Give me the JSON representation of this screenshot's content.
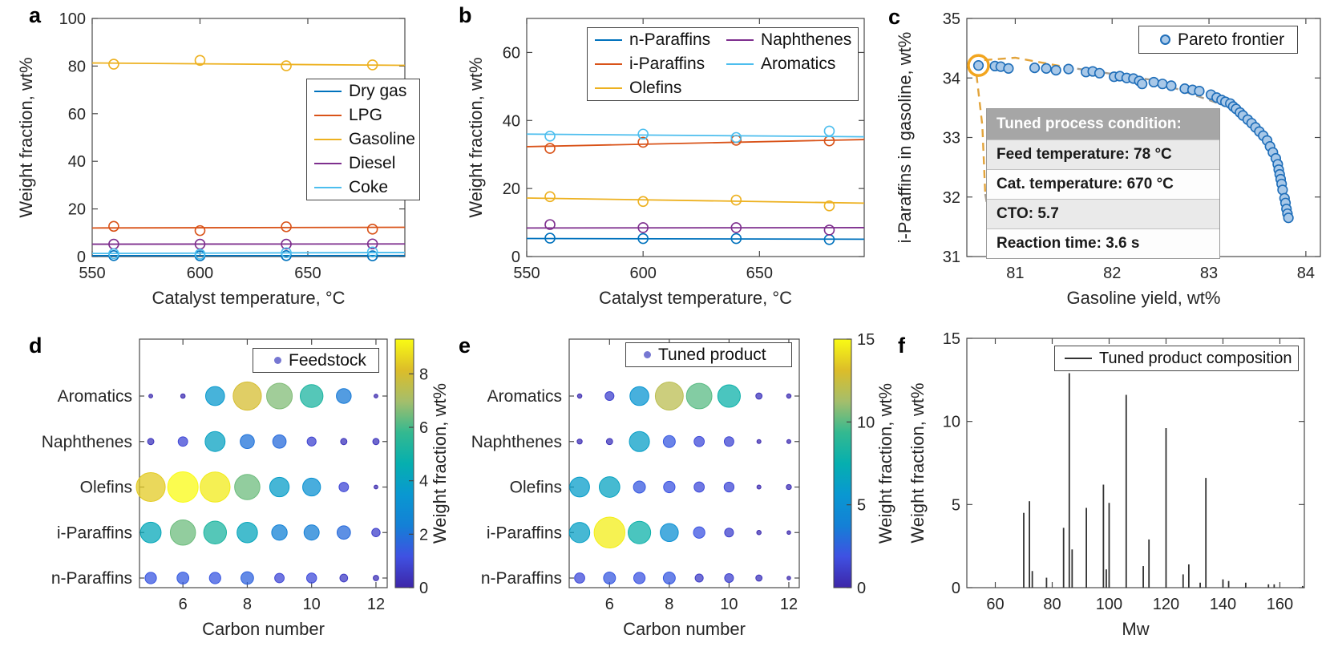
{
  "chart_data": [
    {
      "id": "a",
      "panel_label": "a",
      "type": "line",
      "xlabel": "Catalyst temperature, °C",
      "ylabel": "Weight fraction, wt%",
      "xlim": [
        550,
        695
      ],
      "ylim": [
        0,
        100
      ],
      "xticks": [
        550,
        600,
        650
      ],
      "yticks": [
        0,
        20,
        40,
        60,
        80,
        100
      ],
      "x": [
        560,
        600,
        640,
        680
      ],
      "series": [
        {
          "name": "Dry gas",
          "color": "#0072BD",
          "markers": [
            0.4,
            0.3,
            0.4,
            0.3
          ],
          "trend": [
            0.35,
            0.4
          ]
        },
        {
          "name": "LPG",
          "color": "#D95319",
          "markers": [
            12.7,
            10.9,
            12.5,
            11.5
          ],
          "trend": [
            12.0,
            12.3
          ]
        },
        {
          "name": "Gasoline",
          "color": "#EDB120",
          "markers": [
            80.8,
            82.4,
            80.1,
            80.5
          ],
          "trend": [
            81.3,
            80.3
          ]
        },
        {
          "name": "Diesel",
          "color": "#7E2F8E",
          "markers": [
            5.2,
            5.2,
            5.2,
            5.3
          ],
          "trend": [
            5.2,
            5.3
          ]
        },
        {
          "name": "Coke",
          "color": "#4DBEEE",
          "markers": [
            1.2,
            1.0,
            1.6,
            1.9
          ],
          "trend": [
            1.3,
            1.7
          ]
        }
      ]
    },
    {
      "id": "b",
      "panel_label": "b",
      "type": "line",
      "xlabel": "Catalyst temperature, °C",
      "ylabel": "Weight fraction, wt%",
      "xlim": [
        550,
        695
      ],
      "ylim": [
        0,
        70
      ],
      "xticks": [
        550,
        600,
        650
      ],
      "yticks": [
        0,
        20,
        40,
        60
      ],
      "x": [
        560,
        600,
        640,
        680
      ],
      "series": [
        {
          "name": "n-Paraffins",
          "color": "#0072BD",
          "markers": [
            5.4,
            5.3,
            5.3,
            5.0
          ],
          "trend": [
            5.3,
            5.1
          ]
        },
        {
          "name": "i-Paraffins",
          "color": "#D95319",
          "markers": [
            31.8,
            33.6,
            34.2,
            34.0
          ],
          "trend": [
            32.3,
            34.4
          ]
        },
        {
          "name": "Olefins",
          "color": "#EDB120",
          "markers": [
            17.6,
            16.2,
            16.6,
            14.9
          ],
          "trend": [
            17.2,
            15.7
          ]
        },
        {
          "name": "Naphthenes",
          "color": "#7E2F8E",
          "markers": [
            9.4,
            8.5,
            8.5,
            7.8
          ],
          "trend": [
            8.4,
            8.5
          ]
        },
        {
          "name": "Aromatics",
          "color": "#4DBEEE",
          "markers": [
            35.4,
            36.0,
            35.0,
            36.9
          ],
          "trend": [
            36.0,
            35.2
          ]
        }
      ]
    },
    {
      "id": "c",
      "panel_label": "c",
      "type": "scatter",
      "xlabel": "Gasoline yield, wt%",
      "ylabel": "i-Paraffins in gasoline, wt%",
      "xlim": [
        80.5,
        84.15
      ],
      "ylim": [
        31,
        35
      ],
      "xticks": [
        81,
        82,
        83,
        84
      ],
      "yticks": [
        31,
        32,
        33,
        34,
        35
      ],
      "legend": {
        "label": "Pareto frontier"
      },
      "marker": {
        "fill": "#A8C8E8",
        "stroke": "#1F6EB9"
      },
      "highlight": {
        "x": 80.62,
        "y": 34.21,
        "color": "#F2A51F"
      },
      "guides": [
        {
          "color": "#E2A43C",
          "points": [
            [
              80.68,
              34.3
            ],
            [
              81.0,
              34.34
            ],
            [
              81.5,
              34.19
            ]
          ]
        },
        {
          "color": "#A59D90",
          "points": [
            [
              81.5,
              34.19
            ],
            [
              82.4,
              33.97
            ],
            [
              83.12,
              33.56
            ]
          ]
        },
        {
          "color": "#E2A43C",
          "points": [
            [
              80.6,
              34.05
            ],
            [
              80.66,
              33.2
            ],
            [
              80.69,
              32.05
            ]
          ]
        },
        {
          "color": "#A59D90",
          "points": [
            [
              80.69,
              32.05
            ],
            [
              80.76,
              31.4
            ],
            [
              80.78,
              31.27
            ]
          ]
        }
      ],
      "points": [
        [
          80.62,
          34.21
        ],
        [
          80.79,
          34.2
        ],
        [
          80.85,
          34.19
        ],
        [
          80.93,
          34.16
        ],
        [
          81.2,
          34.17
        ],
        [
          81.32,
          34.16
        ],
        [
          81.42,
          34.13
        ],
        [
          81.55,
          34.15
        ],
        [
          81.73,
          34.1
        ],
        [
          81.8,
          34.11
        ],
        [
          81.87,
          34.08
        ],
        [
          82.02,
          34.02
        ],
        [
          82.08,
          34.03
        ],
        [
          82.15,
          34.0
        ],
        [
          82.22,
          33.99
        ],
        [
          82.28,
          33.95
        ],
        [
          82.31,
          33.9
        ],
        [
          82.43,
          33.93
        ],
        [
          82.52,
          33.9
        ],
        [
          82.61,
          33.87
        ],
        [
          82.75,
          33.82
        ],
        [
          82.83,
          33.8
        ],
        [
          82.9,
          33.78
        ],
        [
          83.02,
          33.72
        ],
        [
          83.08,
          33.67
        ],
        [
          83.13,
          33.63
        ],
        [
          83.17,
          33.6
        ],
        [
          83.22,
          33.57
        ],
        [
          83.25,
          33.52
        ],
        [
          83.28,
          33.48
        ],
        [
          83.32,
          33.42
        ],
        [
          83.35,
          33.37
        ],
        [
          83.4,
          33.3
        ],
        [
          83.44,
          33.24
        ],
        [
          83.48,
          33.17
        ],
        [
          83.52,
          33.1
        ],
        [
          83.56,
          33.03
        ],
        [
          83.6,
          32.95
        ],
        [
          83.63,
          32.85
        ],
        [
          83.66,
          32.75
        ],
        [
          83.69,
          32.65
        ],
        [
          83.71,
          32.55
        ],
        [
          83.72,
          32.46
        ],
        [
          83.73,
          32.38
        ],
        [
          83.74,
          32.3
        ],
        [
          83.75,
          32.22
        ],
        [
          83.76,
          32.12
        ],
        [
          83.78,
          31.98
        ],
        [
          83.79,
          31.9
        ],
        [
          83.8,
          31.8
        ],
        [
          83.81,
          31.72
        ],
        [
          83.82,
          31.65
        ]
      ],
      "annotation": {
        "header": "Tuned process condition:",
        "rows": [
          "Feed temperature: 78 °C",
          "Cat. temperature: 670 °C",
          "CTO: 5.7",
          "Reaction time: 3.6 s"
        ]
      }
    },
    {
      "id": "d",
      "panel_label": "d",
      "type": "bubble",
      "xlabel": "Carbon number",
      "categories": [
        "n-Paraffins",
        "i-Paraffins",
        "Olefins",
        "Naphthenes",
        "Aromatics"
      ],
      "carbon_numbers": [
        5,
        6,
        7,
        8,
        9,
        10,
        11,
        12
      ],
      "xlim": [
        4.65,
        12.35
      ],
      "xticks": [
        6,
        8,
        10,
        12
      ],
      "legend": {
        "label": "Feedstock",
        "dot_color": "#7677D2"
      },
      "colorbar": {
        "max": 9.3,
        "ticks": [
          0,
          2,
          4,
          6,
          8
        ],
        "label": "Weight fraction, wt%"
      },
      "values": [
        [
          1.3,
          1.4,
          1.3,
          1.6,
          0.9,
          1.0,
          0.6,
          0.3
        ],
        [
          4.3,
          6.4,
          5.2,
          4.2,
          2.4,
          2.3,
          1.8,
          0.7
        ],
        [
          8.4,
          9.3,
          9.0,
          6.4,
          3.8,
          3.2,
          0.9,
          0.15
        ],
        [
          0.4,
          0.9,
          4.0,
          2.0,
          1.8,
          0.8,
          0.4,
          0.4
        ],
        [
          0.15,
          0.2,
          3.6,
          8.0,
          6.6,
          5.2,
          2.2,
          0.15
        ]
      ]
    },
    {
      "id": "e",
      "panel_label": "e",
      "type": "bubble",
      "xlabel": "Carbon number",
      "categories": [
        "n-Paraffins",
        "i-Paraffins",
        "Olefins",
        "Naphthenes",
        "Aromatics"
      ],
      "carbon_numbers": [
        5,
        6,
        7,
        8,
        9,
        10,
        11,
        12
      ],
      "xlim": [
        4.65,
        12.35
      ],
      "xticks": [
        6,
        8,
        10,
        12
      ],
      "legend": {
        "label": "Tuned product",
        "dot_color": "#7677D2"
      },
      "colorbar": {
        "max": 15,
        "ticks": [
          0,
          5,
          10,
          15
        ],
        "label": "Weight fraction, wt%"
      },
      "values": [
        [
          1.6,
          2.2,
          2.0,
          2.2,
          1.0,
          1.2,
          0.6,
          0.2
        ],
        [
          6.3,
          14.6,
          7.8,
          5.0,
          2.0,
          1.2,
          0.3,
          0.2
        ],
        [
          6.0,
          6.5,
          2.2,
          2.0,
          1.6,
          1.5,
          0.25,
          0.4
        ],
        [
          0.4,
          0.6,
          6.2,
          2.2,
          1.6,
          1.4,
          0.25,
          0.25
        ],
        [
          0.3,
          1.2,
          5.5,
          12.0,
          10.0,
          7.8,
          0.6,
          0.3
        ]
      ]
    },
    {
      "id": "f",
      "panel_label": "f",
      "type": "stem",
      "xlabel": "Mw",
      "ylabel": "Weight fraction, wt%",
      "xlim": [
        50,
        168.6
      ],
      "ylim": [
        0,
        15
      ],
      "xticks": [
        60,
        80,
        100,
        120,
        140,
        160
      ],
      "yticks": [
        0,
        5,
        10,
        15
      ],
      "legend": {
        "label": "Tuned product composition",
        "line_color": "#333333"
      },
      "stems": [
        [
          70,
          4.5
        ],
        [
          72,
          5.2
        ],
        [
          73,
          1.0
        ],
        [
          78,
          0.6
        ],
        [
          84,
          3.6
        ],
        [
          86,
          12.9
        ],
        [
          87,
          2.3
        ],
        [
          92,
          4.8
        ],
        [
          98,
          6.2
        ],
        [
          99,
          1.1
        ],
        [
          100,
          5.1
        ],
        [
          106,
          11.6
        ],
        [
          112,
          1.3
        ],
        [
          114,
          2.9
        ],
        [
          120,
          9.6
        ],
        [
          126,
          0.8
        ],
        [
          128,
          1.4
        ],
        [
          132,
          0.3
        ],
        [
          134,
          6.6
        ],
        [
          140,
          0.5
        ],
        [
          142,
          0.4
        ],
        [
          148,
          0.3
        ],
        [
          156,
          0.2
        ],
        [
          158,
          0.2
        ],
        [
          168,
          0.1
        ]
      ]
    }
  ]
}
